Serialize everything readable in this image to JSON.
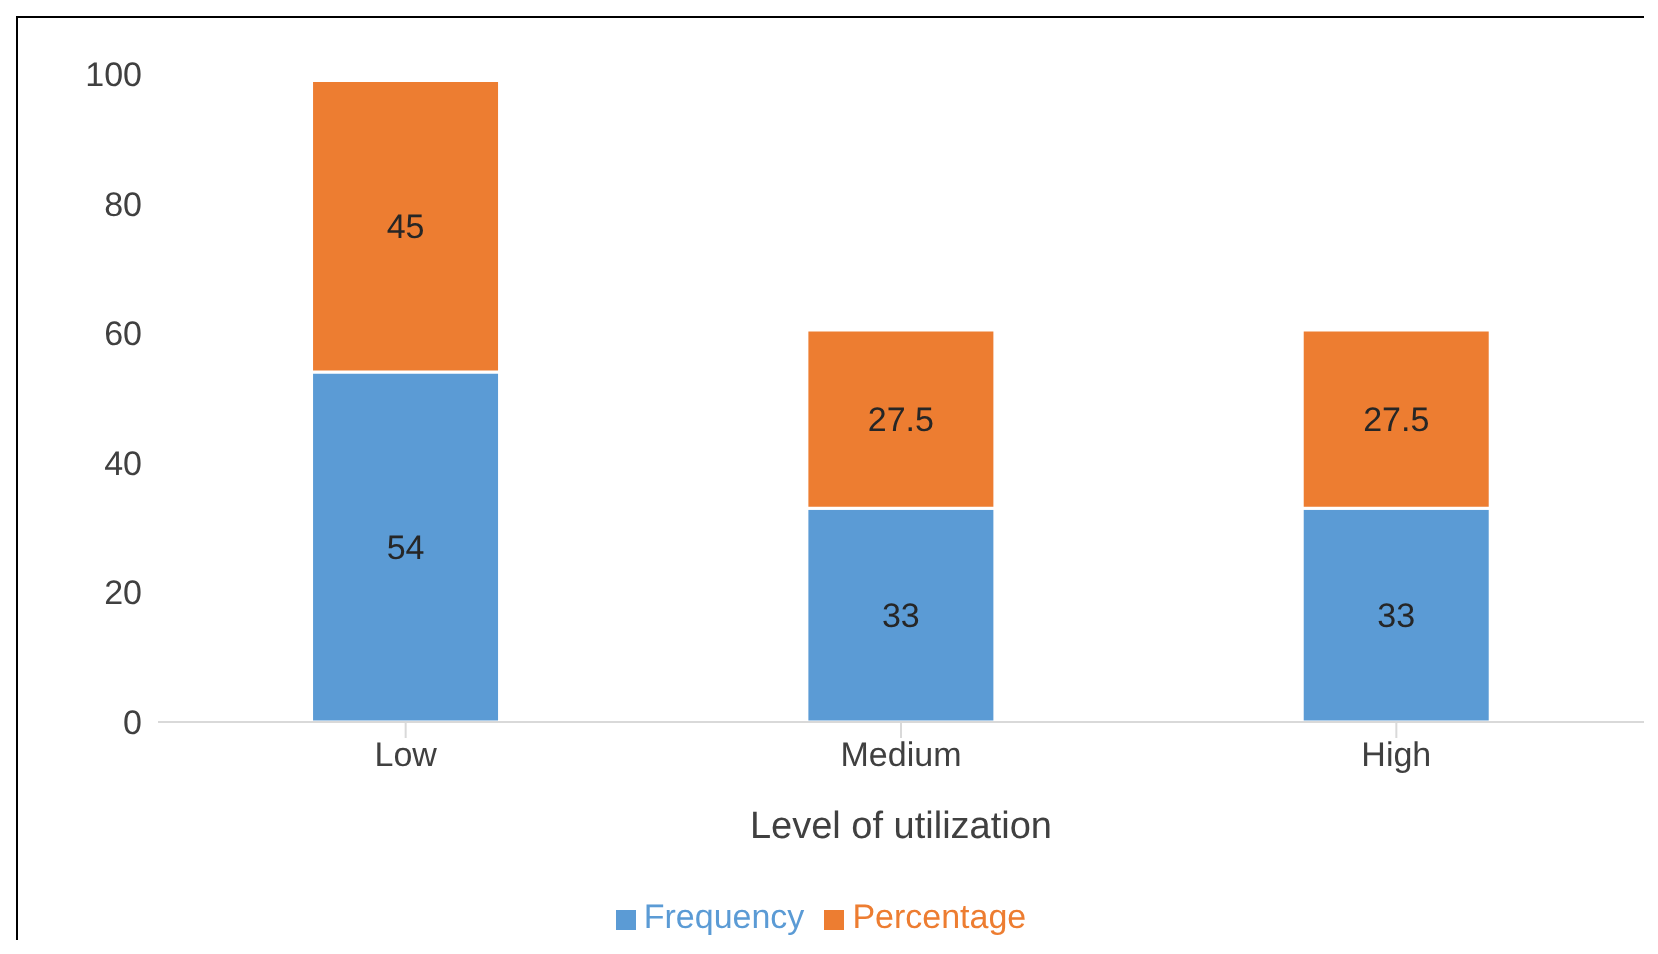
{
  "chart_data": {
    "type": "bar",
    "xlabel": "Level of utilization",
    "categories": [
      "Low",
      "Medium",
      "High"
    ],
    "stacked": true,
    "series": [
      {
        "name": "Frequency",
        "color": "#5b9bd5",
        "values": [
          54,
          33,
          33
        ]
      },
      {
        "name": "Percentage",
        "color": "#ed7d31",
        "values": [
          45,
          27.5,
          27.5
        ]
      }
    ],
    "ylim": [
      0,
      100
    ],
    "yticks": [
      0,
      20,
      40,
      60,
      80,
      100
    ],
    "grid": false,
    "legend": "bottom",
    "data_labels": true
  }
}
